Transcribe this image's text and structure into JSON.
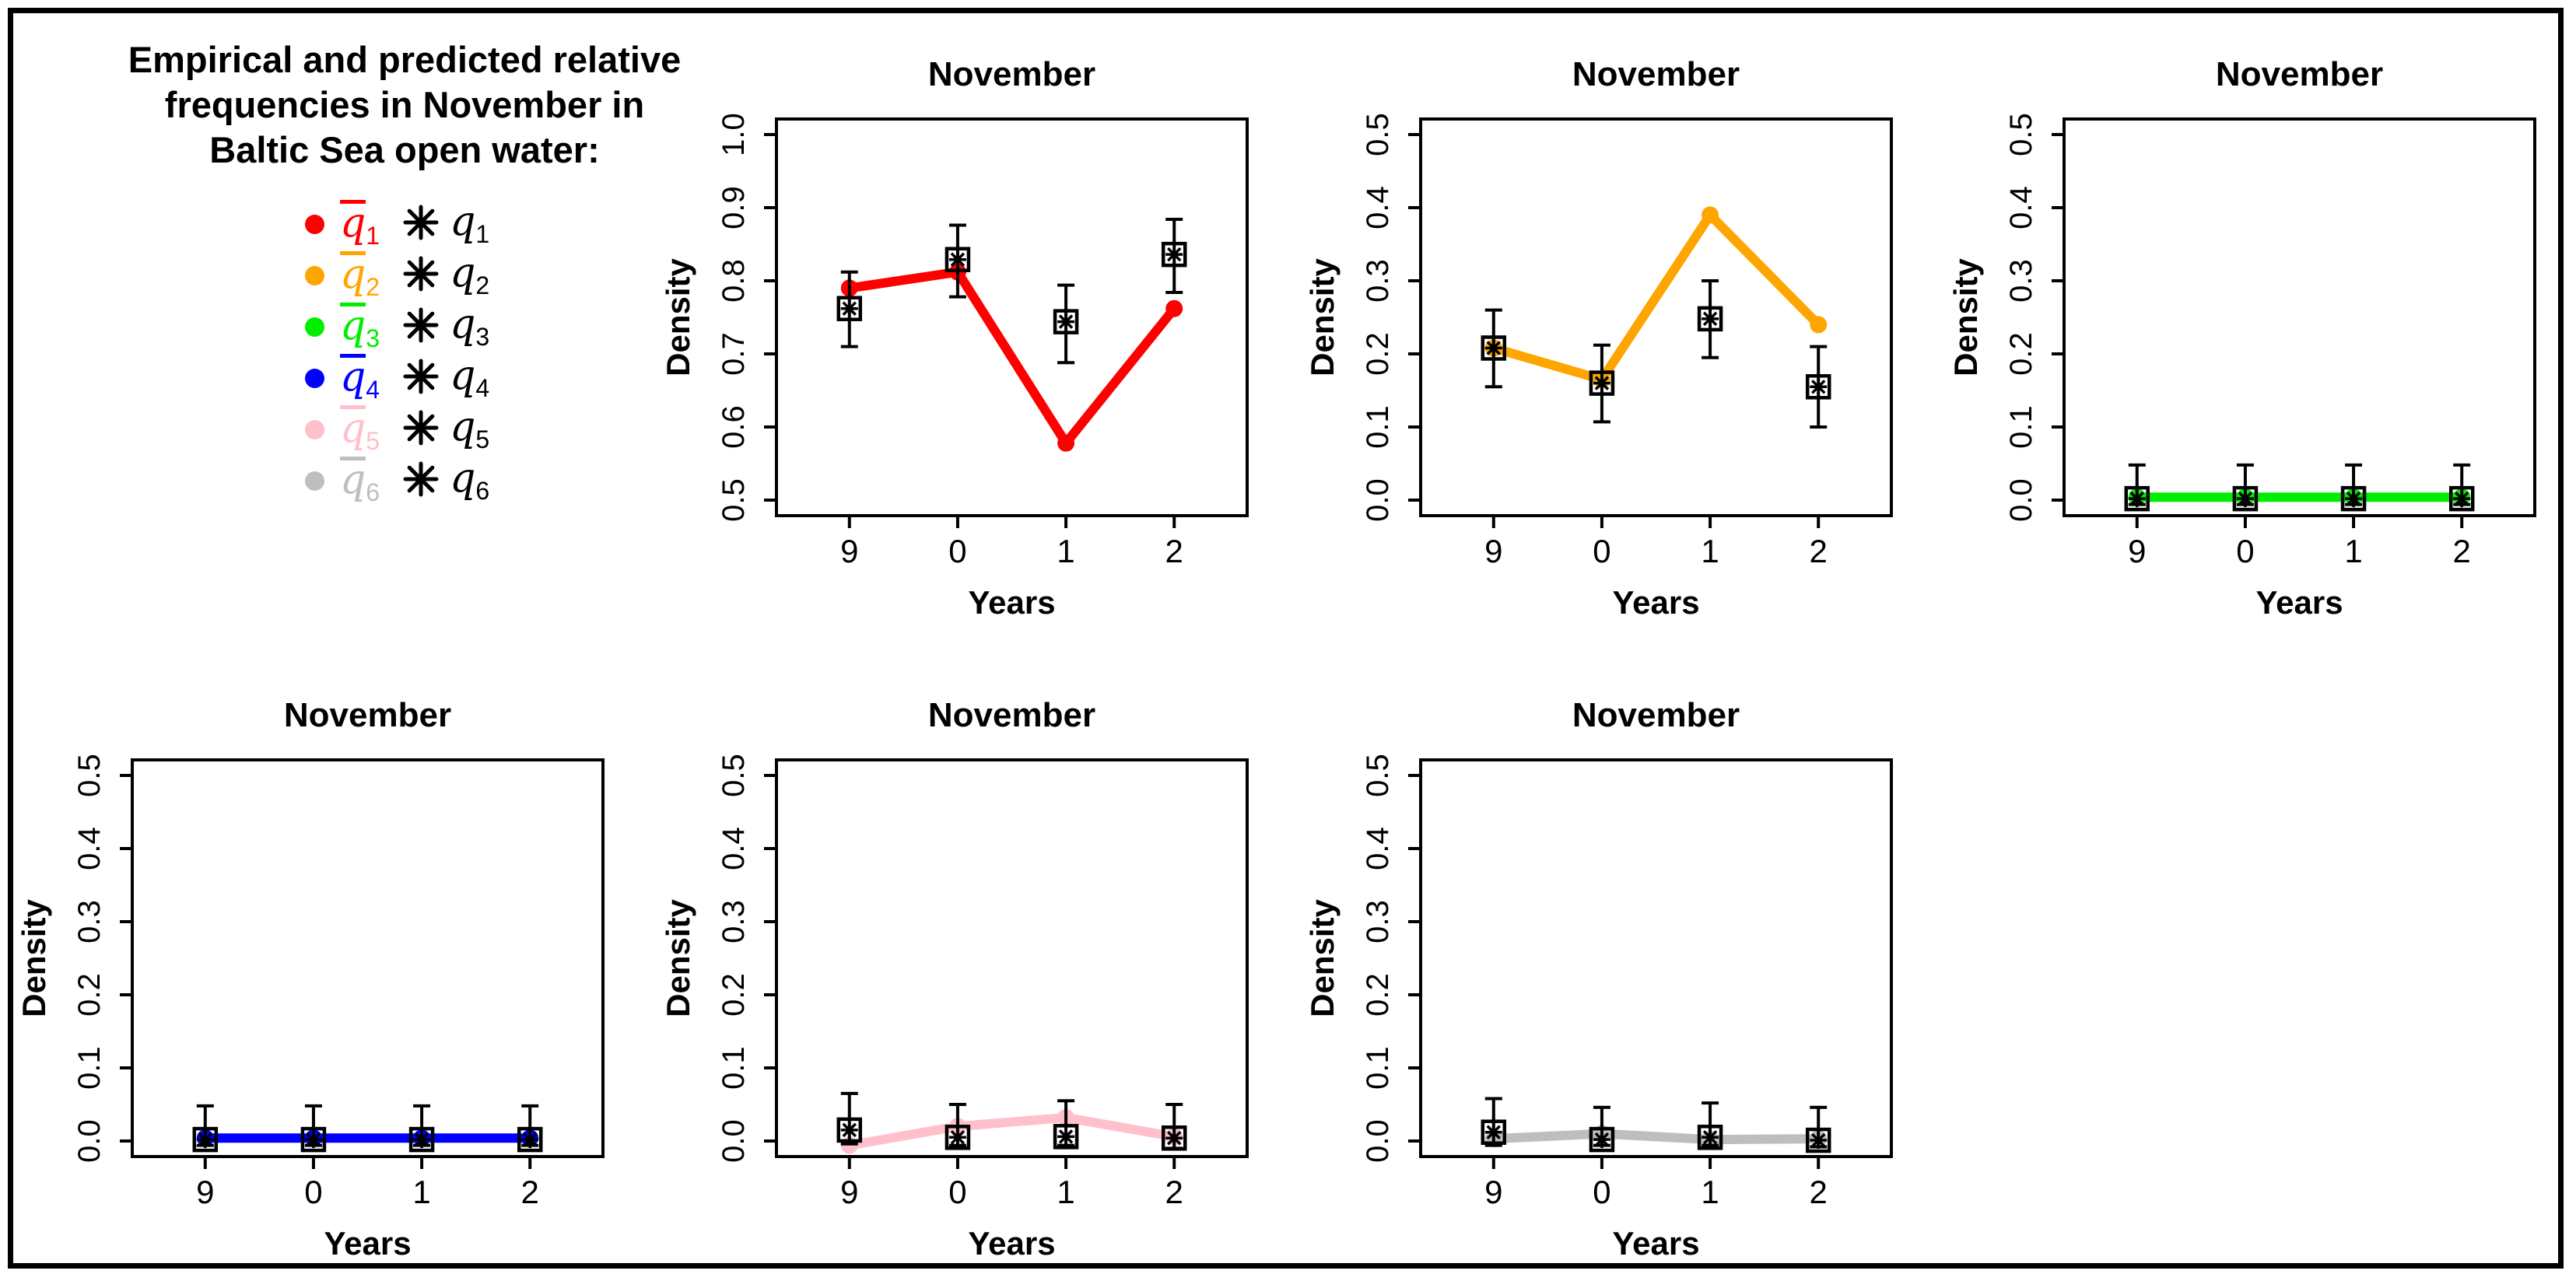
{
  "figure": {
    "title_lines": [
      "Empirical and predicted relative",
      "frequencies in November in",
      "Baltic Sea open water:"
    ],
    "legend": {
      "items": [
        {
          "color": "#FF0000",
          "pred_base": "q",
          "pred_decoration": "overbar",
          "index": "1",
          "emp_symbol": "asterisk",
          "emp_base": "q"
        },
        {
          "color": "#FFA500",
          "pred_base": "q",
          "pred_decoration": "overbar",
          "index": "2",
          "emp_symbol": "asterisk",
          "emp_base": "q"
        },
        {
          "color": "#00EE00",
          "pred_base": "q",
          "pred_decoration": "overbar",
          "index": "3",
          "emp_symbol": "asterisk",
          "emp_base": "q"
        },
        {
          "color": "#0000FF",
          "pred_base": "q",
          "pred_decoration": "overbar",
          "index": "4",
          "emp_symbol": "asterisk",
          "emp_base": "q"
        },
        {
          "color": "#FFC0CB",
          "pred_base": "q",
          "pred_decoration": "overbar",
          "index": "5",
          "emp_symbol": "asterisk",
          "emp_base": "q"
        },
        {
          "color": "#BEBEBE",
          "pred_base": "q",
          "pred_decoration": "overbar",
          "index": "6",
          "emp_symbol": "asterisk",
          "emp_base": "q"
        }
      ],
      "symbol_color_empirical": "#000000"
    }
  },
  "chart_data": [
    {
      "id": "q1",
      "type": "line",
      "row": 0,
      "col": 1,
      "title": "November",
      "xlabel": "Years",
      "ylabel": "Density",
      "x_tick_labels": [
        "9",
        "0",
        "1",
        "2"
      ],
      "ylim": [
        0.5,
        1.0
      ],
      "yticks": [
        0.5,
        0.6,
        0.7,
        0.8,
        0.9,
        1.0
      ],
      "grid": false,
      "legend_position": "none",
      "series": [
        {
          "name": "predicted qbar1",
          "style": "thick-line-with-dots",
          "color": "#FF0000",
          "values": [
            0.79,
            0.812,
            0.578,
            0.762
          ]
        },
        {
          "name": "empirical q1",
          "style": "square-asterisk-errorbar",
          "color": "#000000",
          "values": [
            0.762,
            0.829,
            0.744,
            0.836
          ],
          "err_low": [
            0.71,
            0.778,
            0.688,
            0.784
          ],
          "err_high": [
            0.812,
            0.876,
            0.794,
            0.884
          ]
        }
      ]
    },
    {
      "id": "q2",
      "type": "line",
      "row": 0,
      "col": 2,
      "title": "November",
      "xlabel": "Years",
      "ylabel": "Density",
      "x_tick_labels": [
        "9",
        "0",
        "1",
        "2"
      ],
      "ylim": [
        0.0,
        0.5
      ],
      "yticks": [
        0.0,
        0.1,
        0.2,
        0.3,
        0.4,
        0.5
      ],
      "grid": false,
      "legend_position": "none",
      "series": [
        {
          "name": "predicted qbar2",
          "style": "thick-line-with-dots",
          "color": "#FFA500",
          "values": [
            0.208,
            0.165,
            0.39,
            0.24
          ]
        },
        {
          "name": "empirical q2",
          "style": "square-asterisk-errorbar",
          "color": "#000000",
          "values": [
            0.208,
            0.16,
            0.248,
            0.155
          ],
          "err_low": [
            0.155,
            0.107,
            0.195,
            0.1
          ],
          "err_high": [
            0.26,
            0.212,
            0.3,
            0.21
          ]
        }
      ]
    },
    {
      "id": "q3",
      "type": "line",
      "row": 0,
      "col": 3,
      "title": "November",
      "xlabel": "Years",
      "ylabel": "Density",
      "x_tick_labels": [
        "9",
        "0",
        "1",
        "2"
      ],
      "ylim": [
        0.0,
        0.5
      ],
      "yticks": [
        0.0,
        0.1,
        0.2,
        0.3,
        0.4,
        0.5
      ],
      "grid": false,
      "legend_position": "none",
      "series": [
        {
          "name": "predicted qbar3",
          "style": "thick-line-with-dots",
          "color": "#00EE00",
          "values": [
            0.004,
            0.004,
            0.004,
            0.004
          ]
        },
        {
          "name": "empirical q3",
          "style": "square-asterisk-errorbar",
          "color": "#000000",
          "values": [
            0.002,
            0.002,
            0.002,
            0.002
          ],
          "err_low": [
            -0.006,
            -0.006,
            -0.006,
            -0.006
          ],
          "err_high": [
            0.048,
            0.048,
            0.048,
            0.048
          ]
        }
      ]
    },
    {
      "id": "q4",
      "type": "line",
      "row": 1,
      "col": 0,
      "title": "November",
      "xlabel": "Years",
      "ylabel": "Density",
      "x_tick_labels": [
        "9",
        "0",
        "1",
        "2"
      ],
      "ylim": [
        0.0,
        0.5
      ],
      "yticks": [
        0.0,
        0.1,
        0.2,
        0.3,
        0.4,
        0.5
      ],
      "grid": false,
      "legend_position": "none",
      "series": [
        {
          "name": "predicted qbar4",
          "style": "thick-line-with-dots",
          "color": "#0000FF",
          "values": [
            0.004,
            0.004,
            0.004,
            0.004
          ]
        },
        {
          "name": "empirical q4",
          "style": "square-asterisk-errorbar",
          "color": "#000000",
          "values": [
            0.002,
            0.002,
            0.002,
            0.002
          ],
          "err_low": [
            -0.006,
            -0.006,
            -0.006,
            -0.006
          ],
          "err_high": [
            0.048,
            0.048,
            0.048,
            0.048
          ]
        }
      ]
    },
    {
      "id": "q5",
      "type": "line",
      "row": 1,
      "col": 1,
      "title": "November",
      "xlabel": "Years",
      "ylabel": "Density",
      "x_tick_labels": [
        "9",
        "0",
        "1",
        "2"
      ],
      "ylim": [
        0.0,
        0.5
      ],
      "yticks": [
        0.0,
        0.1,
        0.2,
        0.3,
        0.4,
        0.5
      ],
      "grid": false,
      "legend_position": "none",
      "series": [
        {
          "name": "predicted qbar5",
          "style": "thick-line-with-dots",
          "color": "#FFC0CB",
          "values": [
            -0.006,
            0.02,
            0.032,
            0.006
          ]
        },
        {
          "name": "empirical q5",
          "style": "square-asterisk-errorbar",
          "color": "#000000",
          "values": [
            0.015,
            0.005,
            0.006,
            0.004
          ],
          "err_low": [
            -0.004,
            -0.006,
            -0.006,
            -0.01
          ],
          "err_high": [
            0.065,
            0.05,
            0.055,
            0.05
          ]
        }
      ]
    },
    {
      "id": "q6",
      "type": "line",
      "row": 1,
      "col": 2,
      "title": "November",
      "xlabel": "Years",
      "ylabel": "Density",
      "x_tick_labels": [
        "9",
        "0",
        "1",
        "2"
      ],
      "ylim": [
        0.0,
        0.5
      ],
      "yticks": [
        0.0,
        0.1,
        0.2,
        0.3,
        0.4,
        0.5
      ],
      "grid": false,
      "legend_position": "none",
      "series": [
        {
          "name": "predicted qbar6",
          "style": "thick-line-with-dots",
          "color": "#BEBEBE",
          "values": [
            0.003,
            0.01,
            0.002,
            0.003
          ]
        },
        {
          "name": "empirical q6",
          "style": "square-asterisk-errorbar",
          "color": "#000000",
          "values": [
            0.012,
            0.002,
            0.005,
            0.001
          ],
          "err_low": [
            -0.006,
            -0.006,
            -0.006,
            -0.008
          ],
          "err_high": [
            0.058,
            0.046,
            0.052,
            0.046
          ]
        }
      ]
    }
  ]
}
